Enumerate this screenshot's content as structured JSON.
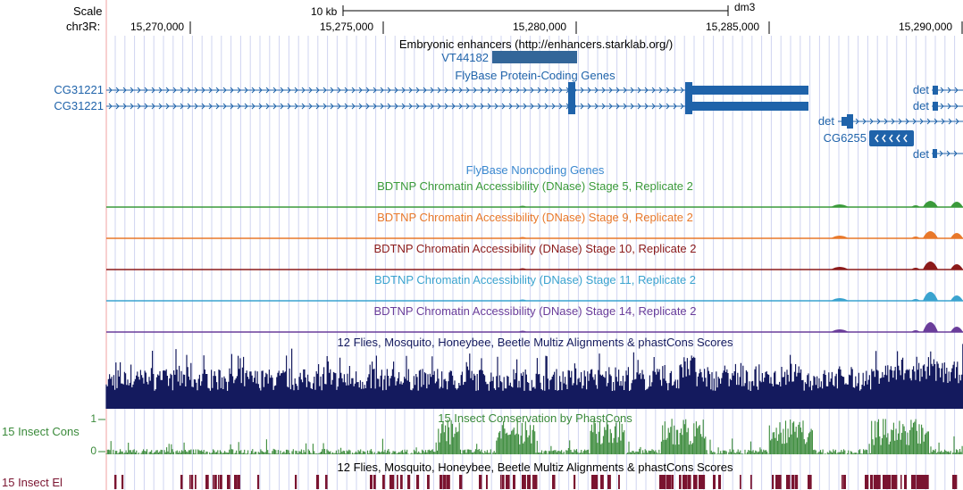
{
  "scale_label": "Scale",
  "scale_bar_label": "10 kb",
  "assembly": "dm3",
  "chrom_label": "chr3R:",
  "positions": [
    "15,270,000",
    "15,275,000",
    "15,280,000",
    "15,285,000",
    "15,290,000"
  ],
  "tracks": {
    "enhancers": {
      "title": "Embryonic enhancers (http://enhancers.starklab.org/)",
      "item": "VT44182"
    },
    "protein_coding": {
      "title": "FlyBase Protein-Coding Genes",
      "genes": [
        {
          "left": "CG31221",
          "right": "det"
        },
        {
          "left": "CG31221",
          "right": "det"
        }
      ],
      "det_label": "det",
      "cg6255_label": "CG6255",
      "det_label_2": "det"
    },
    "noncoding": {
      "title": "FlyBase Noncoding Genes"
    },
    "dnase": [
      {
        "title": "BDTNP Chromatin Accessibility (DNase) Stage 5, Replicate 2",
        "color": "#3a9a3a"
      },
      {
        "title": "BDTNP Chromatin Accessibility (DNase) Stage 9, Replicate 2",
        "color": "#e8782a"
      },
      {
        "title": "BDTNP Chromatin Accessibility (DNase) Stage 10, Replicate 2",
        "color": "#8b1a1a"
      },
      {
        "title": "BDTNP Chromatin Accessibility (DNase) Stage 11, Replicate 2",
        "color": "#3aa3cf"
      },
      {
        "title": "BDTNP Chromatin Accessibility (DNase) Stage 14, Replicate 2",
        "color": "#6a3d9a"
      }
    ],
    "multiz": {
      "title": "12 Flies, Mosquito, Honeybee, Beetle Multiz Alignments & phastCons Scores"
    },
    "cons": {
      "label": "15 Insect Cons",
      "title": "15 Insect Conservation by PhastCons",
      "max_tick": "1",
      "min_tick": "0"
    },
    "elements": {
      "label": "15 Insect El",
      "title": "12 Flies, Mosquito, Honeybee, Beetle Multiz Alignments & phastCons Scores"
    }
  },
  "colors": {
    "gene": "#1f63aa",
    "multiz": "#141a5e",
    "cons": "#3a8a3a",
    "elements": "#7a1430",
    "grid": "#cfd4f0",
    "margin_line": "#f0a0a0"
  }
}
